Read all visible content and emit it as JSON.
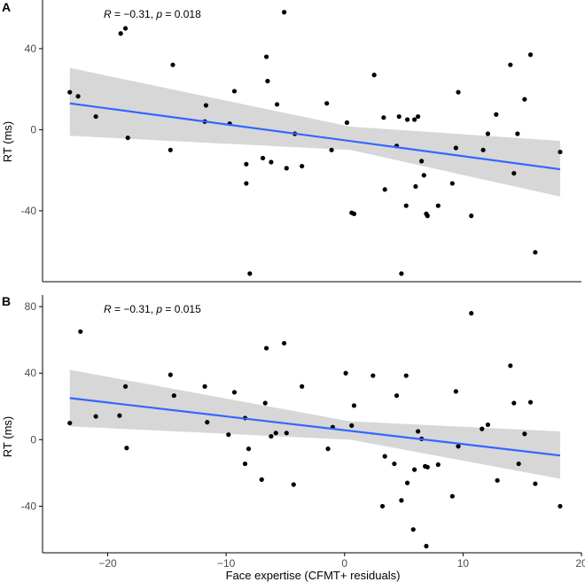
{
  "chart_data": [
    {
      "type": "scatter",
      "panel_label": "A",
      "annotation": {
        "r_label": "R",
        "r_value": " = −0.31, ",
        "p_label": "p",
        "p_value": " = 0.018"
      },
      "xlabel": "",
      "ylabel": "RT (ms)",
      "xlim": [
        -25.5,
        20
      ],
      "ylim": [
        -75,
        64
      ],
      "yticks": [
        40,
        0,
        -40
      ],
      "ytick_labels": [
        "40",
        "0",
        "-40"
      ],
      "xticks": [],
      "grid": false,
      "fit_line": {
        "x": [
          -23.2,
          18.2
        ],
        "y": [
          13,
          -19.5
        ]
      },
      "confidence_band": {
        "x": [
          -23.2,
          0.5,
          18.2
        ],
        "upper": [
          30.5,
          1.5,
          -5.5
        ],
        "lower": [
          -3,
          -10,
          -33
        ]
      },
      "points": [
        {
          "x": -23.2,
          "y": 18.5
        },
        {
          "x": -22.5,
          "y": 16.5
        },
        {
          "x": -21.0,
          "y": 6.5
        },
        {
          "x": -18.9,
          "y": 47.5
        },
        {
          "x": -18.5,
          "y": 50
        },
        {
          "x": -18.3,
          "y": -4
        },
        {
          "x": -14.7,
          "y": -10
        },
        {
          "x": -14.5,
          "y": 32
        },
        {
          "x": -11.7,
          "y": 12
        },
        {
          "x": -11.8,
          "y": 4
        },
        {
          "x": -9.7,
          "y": 3
        },
        {
          "x": -9.3,
          "y": 19
        },
        {
          "x": -8.3,
          "y": -17
        },
        {
          "x": -8.3,
          "y": -26.5
        },
        {
          "x": -8.0,
          "y": -71
        },
        {
          "x": -6.9,
          "y": -14
        },
        {
          "x": -6.6,
          "y": 36
        },
        {
          "x": -6.5,
          "y": 24
        },
        {
          "x": -6.2,
          "y": -16
        },
        {
          "x": -5.7,
          "y": 12.5
        },
        {
          "x": -5.1,
          "y": 58
        },
        {
          "x": -4.9,
          "y": -19
        },
        {
          "x": -4.2,
          "y": -2
        },
        {
          "x": -3.6,
          "y": -18
        },
        {
          "x": -1.5,
          "y": 13
        },
        {
          "x": -1.1,
          "y": -10
        },
        {
          "x": 0.2,
          "y": 3.5
        },
        {
          "x": 0.6,
          "y": -41
        },
        {
          "x": 0.8,
          "y": -41.5
        },
        {
          "x": 2.5,
          "y": 27
        },
        {
          "x": 3.3,
          "y": 6
        },
        {
          "x": 3.4,
          "y": -29.5
        },
        {
          "x": 4.4,
          "y": -8
        },
        {
          "x": 4.6,
          "y": 6.5
        },
        {
          "x": 4.8,
          "y": -71
        },
        {
          "x": 5.2,
          "y": -37.5
        },
        {
          "x": 5.3,
          "y": 5
        },
        {
          "x": 5.9,
          "y": 5
        },
        {
          "x": 6.0,
          "y": -28
        },
        {
          "x": 6.2,
          "y": 6.5
        },
        {
          "x": 6.5,
          "y": -15.5
        },
        {
          "x": 6.7,
          "y": -22.5
        },
        {
          "x": 6.9,
          "y": -41.5
        },
        {
          "x": 7.0,
          "y": -42.5
        },
        {
          "x": 7.9,
          "y": -37.5
        },
        {
          "x": 9.1,
          "y": -26.5
        },
        {
          "x": 9.4,
          "y": -9
        },
        {
          "x": 9.6,
          "y": 18.5
        },
        {
          "x": 10.7,
          "y": -42.5
        },
        {
          "x": 11.7,
          "y": -10
        },
        {
          "x": 12.1,
          "y": -2
        },
        {
          "x": 12.8,
          "y": 7.5
        },
        {
          "x": 14.0,
          "y": 32
        },
        {
          "x": 14.3,
          "y": -21.5
        },
        {
          "x": 14.6,
          "y": -2
        },
        {
          "x": 15.2,
          "y": 15
        },
        {
          "x": 15.7,
          "y": 37
        },
        {
          "x": 16.1,
          "y": -60.5
        },
        {
          "x": 18.2,
          "y": -11
        }
      ]
    },
    {
      "type": "scatter",
      "panel_label": "B",
      "annotation": {
        "r_label": "R",
        "r_value": " = −0.31, ",
        "p_label": "p",
        "p_value": " = 0.015"
      },
      "xlabel": "Face expertise (CFMT+ residuals)",
      "ylabel": "RT (ms)",
      "xlim": [
        -25.5,
        20
      ],
      "ylim": [
        -68,
        87
      ],
      "yticks": [
        80,
        40,
        0,
        -40
      ],
      "ytick_labels": [
        "80",
        "40",
        "0",
        "-40"
      ],
      "xticks": [
        -20,
        -10,
        0,
        10,
        20
      ],
      "xtick_labels": [
        "−20",
        "−10",
        "0",
        "10",
        "20"
      ],
      "grid": false,
      "fit_line": {
        "x": [
          -23.2,
          18.2
        ],
        "y": [
          25,
          -9.5
        ]
      },
      "confidence_band": {
        "x": [
          -23.2,
          0.5,
          18.2
        ],
        "upper": [
          42,
          11,
          5
        ],
        "lower": [
          8,
          0,
          -23.5
        ]
      },
      "points": [
        {
          "x": -23.2,
          "y": 10
        },
        {
          "x": -22.3,
          "y": 65
        },
        {
          "x": -21.0,
          "y": 14
        },
        {
          "x": -19.0,
          "y": 14.5
        },
        {
          "x": -18.5,
          "y": 32
        },
        {
          "x": -18.4,
          "y": -5
        },
        {
          "x": -14.7,
          "y": 39
        },
        {
          "x": -14.4,
          "y": 26.5
        },
        {
          "x": -11.8,
          "y": 32
        },
        {
          "x": -11.6,
          "y": 10.5
        },
        {
          "x": -9.8,
          "y": 3
        },
        {
          "x": -9.3,
          "y": 28.5
        },
        {
          "x": -8.4,
          "y": 13
        },
        {
          "x": -8.4,
          "y": -14.5
        },
        {
          "x": -8.1,
          "y": -5.5
        },
        {
          "x": -7.0,
          "y": -24
        },
        {
          "x": -6.7,
          "y": 22
        },
        {
          "x": -6.6,
          "y": 55
        },
        {
          "x": -6.2,
          "y": 2
        },
        {
          "x": -5.8,
          "y": 4
        },
        {
          "x": -5.1,
          "y": 58
        },
        {
          "x": -4.9,
          "y": 4
        },
        {
          "x": -4.3,
          "y": -27
        },
        {
          "x": -3.6,
          "y": 32
        },
        {
          "x": -1.4,
          "y": -5.5
        },
        {
          "x": -1.0,
          "y": 7.5
        },
        {
          "x": 0.1,
          "y": 40
        },
        {
          "x": 0.6,
          "y": 8.5
        },
        {
          "x": 0.8,
          "y": 20.5
        },
        {
          "x": 2.4,
          "y": 38.5
        },
        {
          "x": 3.2,
          "y": -40
        },
        {
          "x": 3.4,
          "y": -10
        },
        {
          "x": 4.2,
          "y": -14.5
        },
        {
          "x": 4.4,
          "y": 26.5
        },
        {
          "x": 4.8,
          "y": -36.5
        },
        {
          "x": 5.2,
          "y": 38.5
        },
        {
          "x": 5.3,
          "y": -26
        },
        {
          "x": 5.8,
          "y": -54
        },
        {
          "x": 5.9,
          "y": -18
        },
        {
          "x": 6.2,
          "y": 5
        },
        {
          "x": 6.5,
          "y": 0.5
        },
        {
          "x": 6.8,
          "y": -16
        },
        {
          "x": 6.9,
          "y": -64
        },
        {
          "x": 7.0,
          "y": -16.5
        },
        {
          "x": 7.9,
          "y": -15
        },
        {
          "x": 9.1,
          "y": -34
        },
        {
          "x": 9.4,
          "y": 29
        },
        {
          "x": 9.6,
          "y": -4
        },
        {
          "x": 10.7,
          "y": 76
        },
        {
          "x": 11.6,
          "y": 6.5
        },
        {
          "x": 12.1,
          "y": 9
        },
        {
          "x": 12.9,
          "y": -24.5
        },
        {
          "x": 14.0,
          "y": 44.5
        },
        {
          "x": 14.3,
          "y": 22
        },
        {
          "x": 14.7,
          "y": -14.5
        },
        {
          "x": 15.2,
          "y": 3.5
        },
        {
          "x": 15.7,
          "y": 22.5
        },
        {
          "x": 16.1,
          "y": -26.5
        },
        {
          "x": 18.2,
          "y": -40
        }
      ]
    }
  ],
  "colors": {
    "points": "#000000",
    "fit_line": "#3366ff",
    "confidence_band": "#d3d3d3",
    "axis": "#000000",
    "tick_label": "#4d4d4d"
  }
}
